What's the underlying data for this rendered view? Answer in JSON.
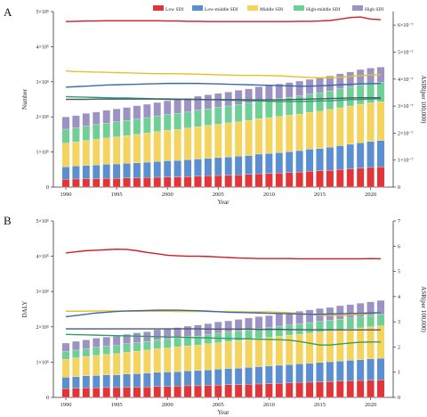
{
  "colors": {
    "low": "#e0363a",
    "low_middle": "#5b8fcf",
    "middle": "#f4d35e",
    "high_middle": "#6fcf97",
    "high": "#9c93c4",
    "axis": "#333333",
    "grid": "#e8e8e8"
  },
  "legend": [
    {
      "key": "low",
      "label": "Low SDI"
    },
    {
      "key": "low_middle",
      "label": "Low-middle SDI"
    },
    {
      "key": "middle",
      "label": "Middle SDI"
    },
    {
      "key": "high_middle",
      "label": "High-middle SDI"
    },
    {
      "key": "high",
      "label": "High SDI"
    }
  ],
  "chart_data": [
    {
      "panel_label": "A",
      "type": "bar",
      "stacked": true,
      "xlabel": "Year",
      "ylabel": "Number",
      "y2label": "ASIR(per 100,000)",
      "x": [
        1990,
        1991,
        1992,
        1993,
        1994,
        1995,
        1996,
        1997,
        1998,
        1999,
        2000,
        2001,
        2002,
        2003,
        2004,
        2005,
        2006,
        2007,
        2008,
        2009,
        2010,
        2011,
        2012,
        2013,
        2014,
        2015,
        2016,
        2017,
        2018,
        2019,
        2020,
        2021
      ],
      "x_ticks": [
        "1990",
        "1995",
        "2000",
        "2005",
        "2010",
        "2015",
        "2020"
      ],
      "y_ticks": [
        "0",
        "1×10⁵",
        "2×10⁵",
        "3×10⁵",
        "4×10⁵",
        "5×10⁵"
      ],
      "ylim": [
        0,
        500000
      ],
      "y2_ticks": [
        "0",
        "1×10⁻⁷",
        "2×10⁻⁷",
        "3×10⁻⁷",
        "4×10⁻⁷",
        "5×10⁻⁷",
        "6×10⁻⁷"
      ],
      "y2lim": [
        0,
        6.5e-07
      ],
      "series": [
        {
          "key": "low",
          "name": "Low SDI",
          "values": [
            22000,
            23000,
            24000,
            24000,
            25000,
            25000,
            26000,
            26000,
            27000,
            28000,
            29000,
            29000,
            30000,
            31000,
            32000,
            33000,
            34000,
            35000,
            36000,
            38000,
            39000,
            40000,
            41000,
            43000,
            45000,
            46000,
            48000,
            50000,
            52000,
            54000,
            56000,
            58000
          ]
        },
        {
          "key": "low_middle",
          "name": "Low-middle SDI",
          "values": [
            36000,
            37000,
            38000,
            39000,
            40000,
            41000,
            42000,
            43000,
            44000,
            45000,
            46000,
            47000,
            48000,
            49000,
            50000,
            51000,
            52000,
            53000,
            54000,
            56000,
            57000,
            58000,
            60000,
            61000,
            63000,
            64000,
            66000,
            68000,
            70000,
            72000,
            74000,
            75000
          ]
        },
        {
          "key": "middle",
          "name": "Middle SDI",
          "values": [
            67000,
            69000,
            71000,
            73000,
            75000,
            77000,
            79000,
            81000,
            83000,
            85000,
            87000,
            88000,
            90000,
            92000,
            94000,
            95000,
            97000,
            98000,
            100000,
            101000,
            102000,
            103000,
            104000,
            104000,
            105000,
            106000,
            107000,
            108000,
            109000,
            110000,
            110000,
            110000
          ]
        },
        {
          "key": "high_middle",
          "name": "High-middle SDI",
          "values": [
            40000,
            40000,
            41000,
            42000,
            42000,
            43000,
            43000,
            44000,
            44000,
            45000,
            45000,
            46000,
            46000,
            47000,
            47000,
            48000,
            48000,
            49000,
            49000,
            50000,
            50000,
            51000,
            51000,
            52000,
            52000,
            53000,
            53000,
            54000,
            54000,
            55000,
            55000,
            55000
          ]
        },
        {
          "key": "high",
          "name": "High SDI",
          "values": [
            35000,
            35000,
            36000,
            36000,
            37000,
            37000,
            37000,
            38000,
            38000,
            38000,
            39000,
            39000,
            39000,
            40000,
            40000,
            40000,
            40000,
            41000,
            41000,
            41000,
            41000,
            42000,
            42000,
            42000,
            42000,
            43000,
            43000,
            43000,
            43000,
            44000,
            44000,
            44000
          ]
        }
      ],
      "rate_series": [
        {
          "key": "low",
          "values": [
            6.13e-07,
            6.14e-07,
            6.15e-07,
            6.15e-07,
            6.16e-07,
            6.16e-07,
            6.16e-07,
            6.16e-07,
            6.16e-07,
            6.16e-07,
            6.15e-07,
            6.15e-07,
            6.14e-07,
            6.14e-07,
            6.13e-07,
            6.13e-07,
            6.13e-07,
            6.13e-07,
            6.13e-07,
            6.13e-07,
            6.13e-07,
            6.13e-07,
            6.13e-07,
            6.14e-07,
            6.14e-07,
            6.15e-07,
            6.17e-07,
            6.22e-07,
            6.28e-07,
            6.3e-07,
            6.22e-07,
            6.2e-07
          ]
        },
        {
          "key": "middle",
          "values": [
            4.3e-07,
            4.28e-07,
            4.27e-07,
            4.26e-07,
            4.25e-07,
            4.24e-07,
            4.23e-07,
            4.22e-07,
            4.21e-07,
            4.2e-07,
            4.2e-07,
            4.2e-07,
            4.19e-07,
            4.18e-07,
            4.17e-07,
            4.16e-07,
            4.15e-07,
            4.14e-07,
            4.14e-07,
            4.14e-07,
            4.13e-07,
            4.12e-07,
            4.1e-07,
            4.08e-07,
            4.06e-07,
            4.05e-07,
            4.05e-07,
            4.07e-07,
            4.1e-07,
            4.13e-07,
            4.15e-07,
            4.17e-07
          ]
        },
        {
          "key": "low_middle",
          "values": [
            3.7e-07,
            3.72e-07,
            3.74e-07,
            3.76e-07,
            3.78e-07,
            3.79e-07,
            3.8e-07,
            3.81e-07,
            3.82e-07,
            3.83e-07,
            3.84e-07,
            3.84e-07,
            3.84e-07,
            3.84e-07,
            3.83e-07,
            3.82e-07,
            3.81e-07,
            3.8e-07,
            3.79e-07,
            3.78e-07,
            3.77e-07,
            3.76e-07,
            3.75e-07,
            3.74e-07,
            3.74e-07,
            3.75e-07,
            3.77e-07,
            3.79e-07,
            3.81e-07,
            3.82e-07,
            3.83e-07,
            3.84e-07
          ]
        },
        {
          "key": "high_middle",
          "values": [
            3.35e-07,
            3.34e-07,
            3.33e-07,
            3.32e-07,
            3.31e-07,
            3.3e-07,
            3.3e-07,
            3.29e-07,
            3.28e-07,
            3.27e-07,
            3.27e-07,
            3.26e-07,
            3.25e-07,
            3.24e-07,
            3.24e-07,
            3.23e-07,
            3.22e-07,
            3.21e-07,
            3.2e-07,
            3.19e-07,
            3.18e-07,
            3.17e-07,
            3.17e-07,
            3.17e-07,
            3.18e-07,
            3.19e-07,
            3.2e-07,
            3.22e-07,
            3.24e-07,
            3.25e-07,
            3.26e-07,
            3.27e-07
          ]
        },
        {
          "key": "high",
          "values": [
            3.25e-07,
            3.25e-07,
            3.25e-07,
            3.26e-07,
            3.26e-07,
            3.26e-07,
            3.26e-07,
            3.26e-07,
            3.26e-07,
            3.26e-07,
            3.25e-07,
            3.25e-07,
            3.25e-07,
            3.25e-07,
            3.24e-07,
            3.24e-07,
            3.24e-07,
            3.24e-07,
            3.23e-07,
            3.23e-07,
            3.23e-07,
            3.23e-07,
            3.24e-07,
            3.25e-07,
            3.26e-07,
            3.27e-07,
            3.28e-07,
            3.29e-07,
            3.3e-07,
            3.31e-07,
            3.31e-07,
            3.31e-07
          ]
        }
      ]
    },
    {
      "panel_label": "B",
      "type": "bar",
      "stacked": true,
      "xlabel": "Year",
      "ylabel": "DALY",
      "y2label": "ASR(per 100,000)",
      "x": [
        1990,
        1991,
        1992,
        1993,
        1994,
        1995,
        1996,
        1997,
        1998,
        1999,
        2000,
        2001,
        2002,
        2003,
        2004,
        2005,
        2006,
        2007,
        2008,
        2009,
        2010,
        2011,
        2012,
        2013,
        2014,
        2015,
        2016,
        2017,
        2018,
        2019,
        2020,
        2021
      ],
      "x_ticks": [
        "1990",
        "1995",
        "2000",
        "2005",
        "2010",
        "2015",
        "2020"
      ],
      "y_ticks": [
        "0",
        "1×10⁵",
        "2×10⁵",
        "3×10⁵",
        "4×10⁵",
        "5×10⁵"
      ],
      "ylim": [
        0,
        500000
      ],
      "y2_ticks": [
        "0",
        "1",
        "2",
        "3",
        "4",
        "5",
        "6",
        "7"
      ],
      "y2lim": [
        0,
        7
      ],
      "series": [
        {
          "key": "low",
          "name": "Low SDI",
          "values": [
            25000,
            26000,
            27000,
            27000,
            28000,
            28000,
            29000,
            29000,
            30000,
            31000,
            31000,
            32000,
            33000,
            33000,
            34000,
            35000,
            36000,
            36000,
            37000,
            38000,
            39000,
            40000,
            41000,
            42000,
            43000,
            44000,
            45000,
            46000,
            47000,
            48000,
            49000,
            50000
          ]
        },
        {
          "key": "low_middle",
          "name": "Low-middle SDI",
          "values": [
            32000,
            33000,
            34000,
            35000,
            36000,
            36000,
            37000,
            38000,
            39000,
            40000,
            41000,
            41000,
            42000,
            43000,
            44000,
            45000,
            46000,
            47000,
            48000,
            49000,
            50000,
            51000,
            52000,
            53000,
            54000,
            55000,
            56000,
            57000,
            58000,
            59000,
            60000,
            61000
          ]
        },
        {
          "key": "middle",
          "name": "Middle SDI",
          "values": [
            51000,
            53000,
            55000,
            57000,
            58000,
            60000,
            62000,
            64000,
            65000,
            67000,
            68000,
            70000,
            71000,
            72000,
            74000,
            75000,
            76000,
            78000,
            79000,
            80000,
            81000,
            82000,
            83000,
            84000,
            85000,
            86000,
            87000,
            88000,
            89000,
            90000,
            91000,
            92000
          ]
        },
        {
          "key": "high_middle",
          "name": "High-middle SDI",
          "values": [
            22000,
            22000,
            22000,
            23000,
            23000,
            23000,
            24000,
            24000,
            24000,
            25000,
            25000,
            25000,
            26000,
            26000,
            26000,
            27000,
            27000,
            27000,
            28000,
            28000,
            28000,
            29000,
            29000,
            29000,
            30000,
            30000,
            30000,
            31000,
            31000,
            31000,
            32000,
            32000
          ]
        },
        {
          "key": "high",
          "name": "High SDI",
          "values": [
            24000,
            25000,
            25000,
            26000,
            26000,
            27000,
            27000,
            28000,
            28000,
            29000,
            29000,
            30000,
            30000,
            31000,
            31000,
            32000,
            32000,
            33000,
            33000,
            34000,
            34000,
            35000,
            35000,
            36000,
            36000,
            37000,
            37000,
            38000,
            38000,
            39000,
            39000,
            40000
          ]
        }
      ],
      "rate_series": [
        {
          "key": "low",
          "values": [
            5.73,
            5.78,
            5.82,
            5.84,
            5.86,
            5.88,
            5.87,
            5.82,
            5.75,
            5.7,
            5.64,
            5.62,
            5.6,
            5.6,
            5.59,
            5.57,
            5.55,
            5.53,
            5.52,
            5.51,
            5.51,
            5.51,
            5.51,
            5.5,
            5.5,
            5.5,
            5.5,
            5.5,
            5.5,
            5.5,
            5.51,
            5.5
          ]
        },
        {
          "key": "middle",
          "values": [
            3.42,
            3.42,
            3.42,
            3.43,
            3.43,
            3.43,
            3.42,
            3.42,
            3.42,
            3.42,
            3.42,
            3.41,
            3.41,
            3.41,
            3.41,
            3.4,
            3.4,
            3.4,
            3.39,
            3.39,
            3.39,
            3.38,
            3.36,
            3.33,
            3.3,
            3.26,
            3.25,
            3.25,
            3.27,
            3.3,
            3.33,
            3.35
          ]
        },
        {
          "key": "low_middle",
          "values": [
            3.2,
            3.25,
            3.3,
            3.35,
            3.38,
            3.41,
            3.43,
            3.44,
            3.45,
            3.46,
            3.46,
            3.46,
            3.45,
            3.44,
            3.42,
            3.4,
            3.38,
            3.37,
            3.36,
            3.35,
            3.34,
            3.33,
            3.32,
            3.31,
            3.3,
            3.3,
            3.31,
            3.32,
            3.33,
            3.34,
            3.35,
            3.36
          ]
        },
        {
          "key": "high",
          "values": [
            2.72,
            2.72,
            2.72,
            2.72,
            2.72,
            2.72,
            2.72,
            2.72,
            2.72,
            2.72,
            2.72,
            2.72,
            2.72,
            2.72,
            2.71,
            2.71,
            2.71,
            2.71,
            2.71,
            2.7,
            2.7,
            2.7,
            2.69,
            2.69,
            2.68,
            2.68,
            2.68,
            2.68,
            2.68,
            2.68,
            2.68,
            2.68
          ]
        },
        {
          "key": "high_middle",
          "values": [
            2.5,
            2.49,
            2.48,
            2.47,
            2.46,
            2.45,
            2.44,
            2.43,
            2.42,
            2.41,
            2.4,
            2.39,
            2.38,
            2.37,
            2.36,
            2.35,
            2.34,
            2.33,
            2.32,
            2.31,
            2.3,
            2.29,
            2.27,
            2.22,
            2.15,
            2.08,
            2.08,
            2.12,
            2.16,
            2.19,
            2.2,
            2.2
          ]
        }
      ]
    }
  ]
}
